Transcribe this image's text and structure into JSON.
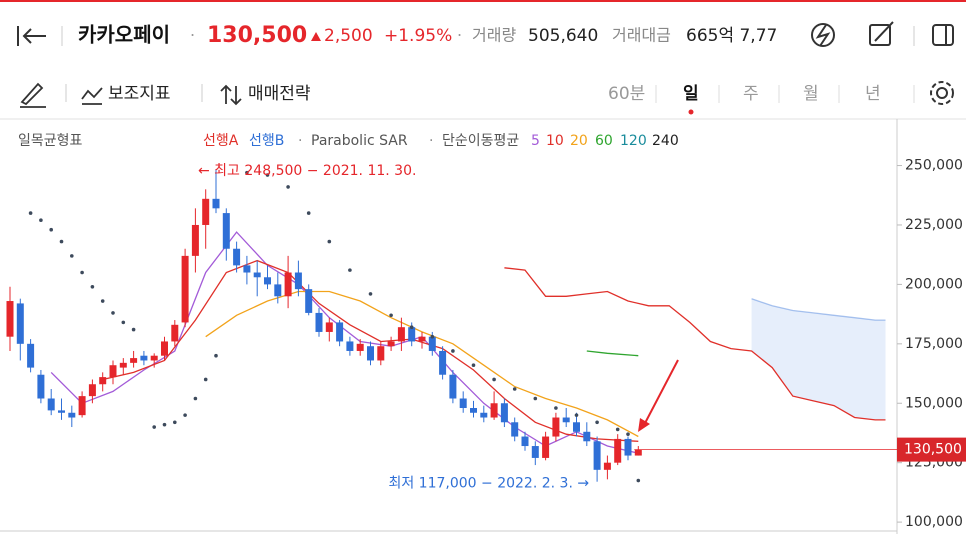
{
  "header": {
    "name": "카카오페이",
    "separator": "·",
    "price": "130,500",
    "change": "2,500",
    "change_pct": "+1.95%",
    "volume_label": "거래량",
    "volume": "505,640",
    "amount_label": "거래대금",
    "amount": "665억 7,77"
  },
  "toolbar": {
    "indicators": "보조지표",
    "strategy": "매매전략",
    "periods": [
      "60분",
      "일",
      "주",
      "월",
      "년"
    ],
    "active_period": 1
  },
  "chart_data": {
    "type": "candlestick",
    "legend": {
      "ichimoku": "일목균형표",
      "separator": "·",
      "ma_title": "단순이동평균"
    },
    "open": [
      178000,
      192000,
      175000,
      162000,
      152000,
      147000,
      146000,
      145000,
      153000,
      158000,
      161000,
      165000,
      167000,
      170000,
      168000,
      170000,
      176000,
      184000,
      212000,
      225000,
      236000,
      230000,
      215000,
      208000,
      205000,
      203000,
      200000,
      195000,
      205000,
      198000,
      188000,
      180000,
      184000,
      176000,
      172000,
      174000,
      168000,
      174000,
      176000,
      182000,
      176000,
      178000,
      172000,
      162000,
      152000,
      148000,
      146000,
      144000,
      150000,
      142000,
      136000,
      132000,
      127000,
      136000,
      144000,
      142000,
      138000,
      134000,
      122000,
      125000,
      135000,
      128000
    ],
    "high": [
      199000,
      194000,
      177000,
      164000,
      156000,
      152000,
      149000,
      155000,
      160000,
      163000,
      168000,
      169000,
      172000,
      172000,
      171000,
      178000,
      185000,
      215000,
      232000,
      240000,
      248500,
      232000,
      218000,
      212000,
      210000,
      208000,
      205000,
      212000,
      210000,
      200000,
      190000,
      186000,
      185000,
      178000,
      177000,
      176000,
      176000,
      178000,
      186000,
      184000,
      180000,
      180000,
      174000,
      164000,
      155000,
      151000,
      149000,
      155000,
      152000,
      144000,
      138000,
      134000,
      138000,
      146000,
      148000,
      146000,
      142000,
      136000,
      128000,
      137000,
      136000,
      132000
    ],
    "low": [
      172000,
      168000,
      163000,
      150000,
      145000,
      143000,
      140000,
      144000,
      150000,
      155000,
      158000,
      162000,
      165000,
      166000,
      165000,
      168000,
      174000,
      182000,
      205000,
      215000,
      230000,
      210000,
      205000,
      200000,
      195000,
      198000,
      192000,
      190000,
      195000,
      187000,
      178000,
      176000,
      174000,
      170000,
      170000,
      166000,
      166000,
      172000,
      172000,
      174000,
      173000,
      170000,
      160000,
      150000,
      146000,
      144000,
      142000,
      143000,
      140000,
      134000,
      130000,
      124000,
      126000,
      134000,
      140000,
      136000,
      132000,
      117000,
      118000,
      124000,
      126000,
      128000
    ],
    "close": [
      193000,
      175000,
      165000,
      152000,
      147000,
      146000,
      144000,
      153000,
      158000,
      161000,
      166000,
      167000,
      169000,
      168000,
      170000,
      176000,
      183000,
      212000,
      225000,
      236000,
      232000,
      215000,
      208000,
      205000,
      203000,
      200000,
      195000,
      205000,
      198000,
      188000,
      180000,
      184000,
      176000,
      172000,
      175000,
      168000,
      174000,
      176000,
      182000,
      176000,
      178000,
      172000,
      162000,
      152000,
      148000,
      146000,
      144000,
      150000,
      142000,
      136000,
      132000,
      127000,
      136000,
      144000,
      142000,
      138000,
      134000,
      122000,
      125000,
      135000,
      128000,
      130500
    ],
    "up_color": "#e5262b",
    "down_color": "#2f6fd6",
    "ma_series": [
      {
        "name": "5",
        "color": "#a35bd8",
        "x": [
          4,
          7,
          10,
          13,
          16,
          19,
          22,
          25,
          28,
          31,
          34,
          37,
          40,
          43,
          46,
          49,
          52,
          55,
          58,
          61
        ],
        "values": [
          163000,
          150000,
          155000,
          164000,
          172000,
          205000,
          222000,
          208000,
          200000,
          186000,
          176000,
          174000,
          178000,
          163000,
          150000,
          140000,
          132000,
          138000,
          132000,
          129000
        ]
      },
      {
        "name": "10",
        "color": "#e0302a",
        "x": [
          9,
          12,
          15,
          18,
          21,
          24,
          27,
          30,
          33,
          36,
          39,
          42,
          45,
          48,
          51,
          54,
          57,
          61
        ],
        "values": [
          160000,
          163000,
          168000,
          185000,
          205000,
          210000,
          205000,
          192000,
          183000,
          176000,
          177000,
          173000,
          164000,
          152000,
          142000,
          137000,
          135000,
          134000
        ]
      },
      {
        "name": "20",
        "color": "#f2a31b",
        "x": [
          19,
          22,
          25,
          28,
          31,
          34,
          37,
          40,
          43,
          46,
          49,
          52,
          55,
          58,
          61
        ],
        "values": [
          178000,
          187000,
          193000,
          197000,
          197000,
          193000,
          186000,
          180000,
          175000,
          166000,
          157000,
          152000,
          148000,
          143000,
          136000
        ]
      },
      {
        "name": "60",
        "color": "#2fa52f",
        "x": [
          56,
          58,
          61
        ],
        "values": [
          172000,
          171000,
          170000
        ]
      },
      {
        "name": "120",
        "color": "#1a8c9c",
        "x": [],
        "values": []
      },
      {
        "name": "240",
        "color": "#222222",
        "x": [],
        "values": []
      }
    ],
    "span_a": {
      "name": "선행A",
      "color": "#e0302a",
      "x": [
        48,
        50,
        52,
        54,
        56,
        58,
        60,
        62,
        64,
        66,
        68,
        70,
        72,
        74,
        76,
        78,
        80,
        82,
        84,
        85
      ],
      "values": [
        207000,
        206000,
        195000,
        195000,
        196000,
        197000,
        193000,
        191000,
        191000,
        184000,
        176000,
        173000,
        172000,
        165000,
        153000,
        151000,
        149000,
        144000,
        143000,
        143000
      ]
    },
    "span_b": {
      "name": "선행B",
      "color": "#2f6fd6",
      "x": [
        72,
        74,
        76,
        78,
        80,
        82,
        84,
        85
      ],
      "values": [
        194000,
        191000,
        189000,
        188000,
        187000,
        186000,
        185000,
        185000
      ]
    },
    "sar": {
      "name": "Parabolic SAR",
      "color": "#3d4a5c",
      "x": [
        2,
        3,
        4,
        5,
        6,
        7,
        8,
        9,
        10,
        11,
        12,
        14,
        15,
        16,
        17,
        18,
        19,
        20,
        23,
        25,
        27,
        29,
        31,
        33,
        35,
        37,
        39,
        41,
        43,
        45,
        47,
        49,
        51,
        53,
        55,
        57,
        59,
        60,
        61
      ],
      "values": [
        230000,
        227000,
        223000,
        218000,
        212000,
        205000,
        199000,
        193000,
        188000,
        184000,
        181000,
        140000,
        141000,
        142000,
        145000,
        152000,
        160000,
        170000,
        247000,
        246000,
        241000,
        230000,
        218000,
        206000,
        196000,
        187000,
        182000,
        178000,
        172000,
        166000,
        160000,
        156000,
        152000,
        148000,
        145000,
        142000,
        139000,
        137000,
        117500
      ]
    },
    "ylim": [
      95000,
      270000
    ],
    "yticks": [
      {
        "value": 100000,
        "label": "100,000"
      },
      {
        "value": 125000,
        "label": "125,000"
      },
      {
        "value": 150000,
        "label": "150,000"
      },
      {
        "value": 175000,
        "label": "175,000"
      },
      {
        "value": 200000,
        "label": "200,000"
      },
      {
        "value": 225000,
        "label": "225,000"
      },
      {
        "value": 250000,
        "label": "250,000"
      }
    ],
    "current_price": {
      "value": 130500,
      "label": "130,500"
    },
    "annotations": {
      "high": "← 최고 248,500 − 2021. 11. 30.",
      "low": "최저 117,000 − 2022. 2. 3. →"
    }
  }
}
